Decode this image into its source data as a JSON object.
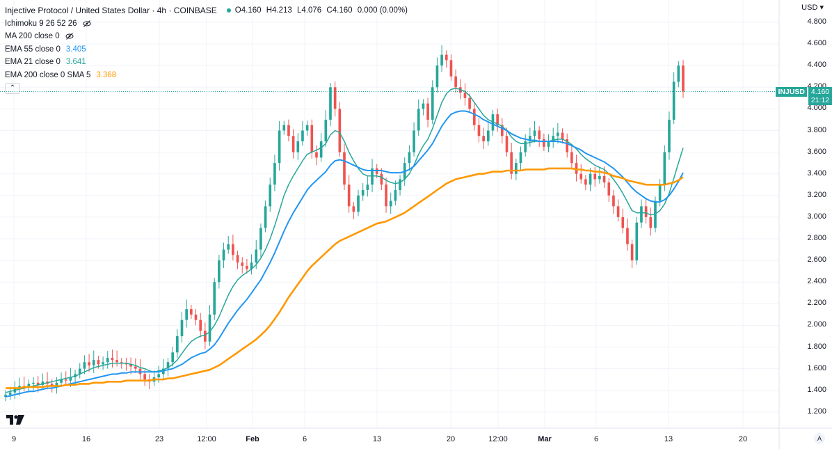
{
  "header": {
    "title": "Injective Protocol / United States Dollar · 4h · COINBASE",
    "ohlc": {
      "o": "O4.160",
      "h": "H4.213",
      "l": "L4.076",
      "c": "C4.160",
      "chg": "0.000 (0.00%)"
    },
    "indicators": [
      {
        "label": "Ichimoku 9 26 52 26",
        "value": "",
        "hidden": true
      },
      {
        "label": "MA 200 close 0",
        "value": "",
        "hidden": true
      },
      {
        "label": "EMA 55 close 0",
        "value": "3.405",
        "color": "#2196f3"
      },
      {
        "label": "EMA 21 close 0",
        "value": "3.641",
        "color": "#26a69a"
      },
      {
        "label": "EMA 200 close 0 SMA 5",
        "value": "3.368",
        "color": "#ff9800"
      }
    ],
    "collapse_icon": "chevron-up-icon"
  },
  "price_axis": {
    "currency": "USD",
    "ticks": [
      "4.800",
      "4.600",
      "4.400",
      "4.200",
      "4.000",
      "3.800",
      "3.600",
      "3.400",
      "3.200",
      "3.000",
      "2.800",
      "2.600",
      "2.400",
      "2.200",
      "2.000",
      "1.800",
      "1.600",
      "1.400",
      "1.200"
    ]
  },
  "last_price": {
    "symbol": "INJUSD",
    "price": "4.160",
    "countdown": "21:12"
  },
  "time_axis": {
    "labels": [
      {
        "text": "9",
        "bold": false
      },
      {
        "text": "16",
        "bold": false
      },
      {
        "text": "23",
        "bold": false
      },
      {
        "text": "12:00",
        "bold": false
      },
      {
        "text": "Feb",
        "bold": true
      },
      {
        "text": "6",
        "bold": false
      },
      {
        "text": "13",
        "bold": false
      },
      {
        "text": "20",
        "bold": false
      },
      {
        "text": "12:00",
        "bold": false
      },
      {
        "text": "Mar",
        "bold": true
      },
      {
        "text": "6",
        "bold": false
      },
      {
        "text": "13",
        "bold": false
      },
      {
        "text": "20",
        "bold": false
      }
    ],
    "auto_label": "A"
  },
  "colors": {
    "up": "#26a69a",
    "down": "#ef5350",
    "ema21": "#26a69a",
    "ema55": "#2196f3",
    "ema200": "#ff9800",
    "grid": "#f0f3fa"
  },
  "chart_data": {
    "type": "line",
    "title": "Injective Protocol / United States Dollar · 4h · COINBASE",
    "xlabel": "",
    "ylabel": "",
    "ylim": [
      1.05,
      4.95
    ],
    "grid": true,
    "note_x": "candle index (4h bars), 0 = first visible bar",
    "candles_close": [
      1.36,
      1.38,
      1.42,
      1.44,
      1.43,
      1.46,
      1.47,
      1.45,
      1.48,
      1.46,
      1.44,
      1.47,
      1.5,
      1.49,
      1.52,
      1.55,
      1.6,
      1.66,
      1.63,
      1.68,
      1.64,
      1.66,
      1.7,
      1.68,
      1.66,
      1.65,
      1.64,
      1.62,
      1.6,
      1.55,
      1.5,
      1.48,
      1.52,
      1.55,
      1.6,
      1.66,
      1.75,
      1.9,
      2.05,
      2.15,
      2.1,
      2.05,
      1.95,
      1.85,
      2.1,
      2.4,
      2.6,
      2.7,
      2.75,
      2.65,
      2.58,
      2.55,
      2.52,
      2.58,
      2.7,
      2.9,
      3.1,
      3.3,
      3.5,
      3.8,
      3.85,
      3.75,
      3.6,
      3.7,
      3.8,
      3.85,
      3.6,
      3.55,
      3.7,
      3.9,
      4.2,
      4.0,
      3.6,
      3.3,
      3.1,
      3.05,
      3.2,
      3.25,
      3.3,
      3.45,
      3.4,
      3.3,
      3.1,
      3.15,
      3.25,
      3.35,
      3.5,
      3.6,
      3.8,
      4.0,
      4.05,
      3.9,
      4.2,
      4.4,
      4.5,
      4.45,
      4.3,
      4.2,
      4.15,
      4.1,
      4.0,
      3.85,
      3.75,
      3.7,
      3.8,
      3.95,
      3.85,
      3.75,
      3.6,
      3.4,
      3.5,
      3.6,
      3.7,
      3.75,
      3.8,
      3.72,
      3.65,
      3.7,
      3.75,
      3.78,
      3.72,
      3.6,
      3.5,
      3.4,
      3.35,
      3.3,
      3.4,
      3.35,
      3.38,
      3.32,
      3.2,
      3.1,
      3.0,
      2.9,
      2.75,
      2.6,
      2.95,
      3.1,
      3.0,
      2.9,
      3.15,
      3.3,
      3.6,
      3.9,
      4.25,
      4.4,
      4.16
    ],
    "series": [
      {
        "name": "EMA 21 close 0",
        "values": [
          1.38,
          1.39,
          1.4,
          1.41,
          1.42,
          1.43,
          1.44,
          1.45,
          1.46,
          1.47,
          1.48,
          1.49,
          1.5,
          1.51,
          1.52,
          1.53,
          1.55,
          1.57,
          1.59,
          1.61,
          1.62,
          1.63,
          1.64,
          1.65,
          1.65,
          1.65,
          1.65,
          1.64,
          1.63,
          1.61,
          1.6,
          1.58,
          1.57,
          1.58,
          1.59,
          1.61,
          1.64,
          1.68,
          1.74,
          1.8,
          1.85,
          1.88,
          1.9,
          1.91,
          1.94,
          2.0,
          2.08,
          2.18,
          2.28,
          2.36,
          2.42,
          2.46,
          2.49,
          2.52,
          2.56,
          2.62,
          2.7,
          2.8,
          2.92,
          3.06,
          3.2,
          3.3,
          3.38,
          3.45,
          3.52,
          3.58,
          3.6,
          3.62,
          3.64,
          3.68,
          3.76,
          3.8,
          3.78,
          3.7,
          3.6,
          3.52,
          3.45,
          3.4,
          3.38,
          3.38,
          3.38,
          3.37,
          3.34,
          3.32,
          3.31,
          3.32,
          3.35,
          3.4,
          3.48,
          3.58,
          3.66,
          3.72,
          3.82,
          3.94,
          4.06,
          4.14,
          4.18,
          4.19,
          4.18,
          4.16,
          4.12,
          4.06,
          4.0,
          3.94,
          3.9,
          3.88,
          3.86,
          3.84,
          3.8,
          3.74,
          3.7,
          3.68,
          3.68,
          3.69,
          3.7,
          3.7,
          3.7,
          3.7,
          3.71,
          3.72,
          3.72,
          3.7,
          3.67,
          3.63,
          3.58,
          3.54,
          3.51,
          3.48,
          3.46,
          3.44,
          3.4,
          3.35,
          3.29,
          3.22,
          3.14,
          3.06,
          3.04,
          3.04,
          3.04,
          3.02,
          3.03,
          3.06,
          3.12,
          3.22,
          3.36,
          3.5,
          3.64
        ]
      },
      {
        "name": "EMA 55 close 0",
        "values": [
          1.34,
          1.35,
          1.36,
          1.37,
          1.38,
          1.39,
          1.39,
          1.4,
          1.41,
          1.42,
          1.42,
          1.43,
          1.44,
          1.45,
          1.46,
          1.47,
          1.48,
          1.49,
          1.5,
          1.51,
          1.52,
          1.53,
          1.54,
          1.55,
          1.55,
          1.56,
          1.56,
          1.57,
          1.57,
          1.57,
          1.57,
          1.57,
          1.57,
          1.57,
          1.58,
          1.59,
          1.6,
          1.62,
          1.64,
          1.67,
          1.7,
          1.72,
          1.74,
          1.75,
          1.78,
          1.82,
          1.88,
          1.95,
          2.02,
          2.08,
          2.14,
          2.19,
          2.24,
          2.3,
          2.36,
          2.42,
          2.5,
          2.58,
          2.67,
          2.77,
          2.87,
          2.96,
          3.04,
          3.11,
          3.18,
          3.25,
          3.3,
          3.34,
          3.38,
          3.42,
          3.48,
          3.52,
          3.53,
          3.52,
          3.5,
          3.48,
          3.46,
          3.44,
          3.43,
          3.43,
          3.43,
          3.43,
          3.42,
          3.41,
          3.41,
          3.41,
          3.42,
          3.44,
          3.47,
          3.52,
          3.57,
          3.62,
          3.68,
          3.76,
          3.84,
          3.9,
          3.95,
          3.97,
          3.98,
          3.98,
          3.97,
          3.95,
          3.93,
          3.9,
          3.88,
          3.86,
          3.84,
          3.82,
          3.8,
          3.77,
          3.75,
          3.73,
          3.72,
          3.71,
          3.71,
          3.7,
          3.7,
          3.7,
          3.7,
          3.7,
          3.69,
          3.68,
          3.66,
          3.64,
          3.62,
          3.59,
          3.57,
          3.55,
          3.53,
          3.51,
          3.48,
          3.45,
          3.41,
          3.37,
          3.32,
          3.27,
          3.23,
          3.2,
          3.17,
          3.15,
          3.14,
          3.14,
          3.16,
          3.2,
          3.26,
          3.33,
          3.41
        ]
      },
      {
        "name": "EMA 200 close 0 SMA 5",
        "values": [
          1.42,
          1.42,
          1.42,
          1.42,
          1.43,
          1.43,
          1.43,
          1.43,
          1.43,
          1.44,
          1.44,
          1.44,
          1.44,
          1.45,
          1.45,
          1.45,
          1.46,
          1.46,
          1.46,
          1.47,
          1.47,
          1.47,
          1.48,
          1.48,
          1.48,
          1.48,
          1.49,
          1.49,
          1.49,
          1.49,
          1.49,
          1.49,
          1.5,
          1.5,
          1.5,
          1.51,
          1.51,
          1.52,
          1.53,
          1.54,
          1.55,
          1.56,
          1.57,
          1.58,
          1.59,
          1.61,
          1.63,
          1.66,
          1.69,
          1.72,
          1.75,
          1.78,
          1.81,
          1.84,
          1.87,
          1.91,
          1.95,
          2.0,
          2.06,
          2.12,
          2.19,
          2.26,
          2.32,
          2.38,
          2.44,
          2.5,
          2.55,
          2.59,
          2.63,
          2.67,
          2.71,
          2.75,
          2.78,
          2.8,
          2.82,
          2.84,
          2.86,
          2.88,
          2.9,
          2.92,
          2.94,
          2.95,
          2.96,
          2.98,
          3.0,
          3.02,
          3.04,
          3.07,
          3.1,
          3.13,
          3.16,
          3.19,
          3.22,
          3.25,
          3.28,
          3.31,
          3.33,
          3.35,
          3.36,
          3.37,
          3.38,
          3.39,
          3.4,
          3.4,
          3.41,
          3.42,
          3.42,
          3.42,
          3.43,
          3.43,
          3.43,
          3.43,
          3.44,
          3.44,
          3.44,
          3.44,
          3.44,
          3.45,
          3.45,
          3.45,
          3.45,
          3.45,
          3.45,
          3.44,
          3.44,
          3.43,
          3.43,
          3.42,
          3.42,
          3.41,
          3.4,
          3.38,
          3.37,
          3.36,
          3.34,
          3.33,
          3.32,
          3.31,
          3.3,
          3.3,
          3.3,
          3.3,
          3.3,
          3.31,
          3.32,
          3.34,
          3.37
        ]
      }
    ]
  }
}
